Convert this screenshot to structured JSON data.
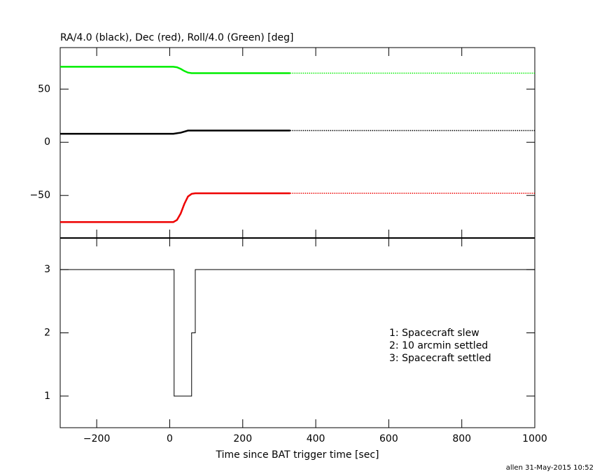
{
  "chart_data": [
    {
      "type": "line",
      "title": "RA/4.0 (black), Dec (red), Roll/4.0 (Green) [deg]",
      "xlim": [
        -300,
        1000
      ],
      "ylim": [
        -90,
        89
      ],
      "yticks": [
        {
          "value": -50,
          "label": "−50"
        },
        0,
        50
      ],
      "series": [
        {
          "color": "#00ee00",
          "style": "solid",
          "x": [
            -300,
            10,
            20,
            30,
            40,
            50,
            60,
            330
          ],
          "values": [
            71,
            71,
            70.5,
            69,
            67,
            65.5,
            65,
            65
          ]
        },
        {
          "color": "#00ee00",
          "style": "dotted",
          "x": [
            330,
            1000
          ],
          "values": [
            65,
            65
          ]
        },
        {
          "color": "#000000",
          "style": "solid",
          "x": [
            -300,
            10,
            30,
            50,
            330
          ],
          "values": [
            8,
            8,
            9,
            11,
            11
          ]
        },
        {
          "color": "#000000",
          "style": "dotted",
          "x": [
            330,
            1000
          ],
          "values": [
            11,
            11
          ]
        },
        {
          "color": "#ee0000",
          "style": "solid",
          "x": [
            -300,
            10,
            20,
            30,
            40,
            50,
            60,
            70,
            330
          ],
          "values": [
            -75,
            -75,
            -73,
            -67,
            -58,
            -51,
            -48.5,
            -48,
            -48
          ]
        },
        {
          "color": "#ee0000",
          "style": "dotted",
          "x": [
            330,
            1000
          ],
          "values": [
            -48,
            -48
          ]
        }
      ]
    },
    {
      "type": "line",
      "xlabel": "Time since BAT trigger time [sec]",
      "xlim": [
        -300,
        1000
      ],
      "ylim": [
        0.5,
        3.5
      ],
      "xticks": [
        {
          "value": -200,
          "label": "−200"
        },
        0,
        200,
        400,
        600,
        800,
        1000
      ],
      "yticks": [
        1,
        2,
        3
      ],
      "annotations": [
        "1: Spacecraft slew",
        "2: 10 arcmin settled",
        "3: Spacecraft settled"
      ],
      "series": [
        {
          "color": "#000000",
          "style": "solid",
          "x": [
            -300,
            12,
            12,
            60,
            60,
            70,
            70,
            1000
          ],
          "values": [
            3,
            3,
            1,
            1,
            2,
            2,
            3,
            3
          ]
        }
      ]
    }
  ],
  "footer": "allen 31-May-2015 10:52"
}
